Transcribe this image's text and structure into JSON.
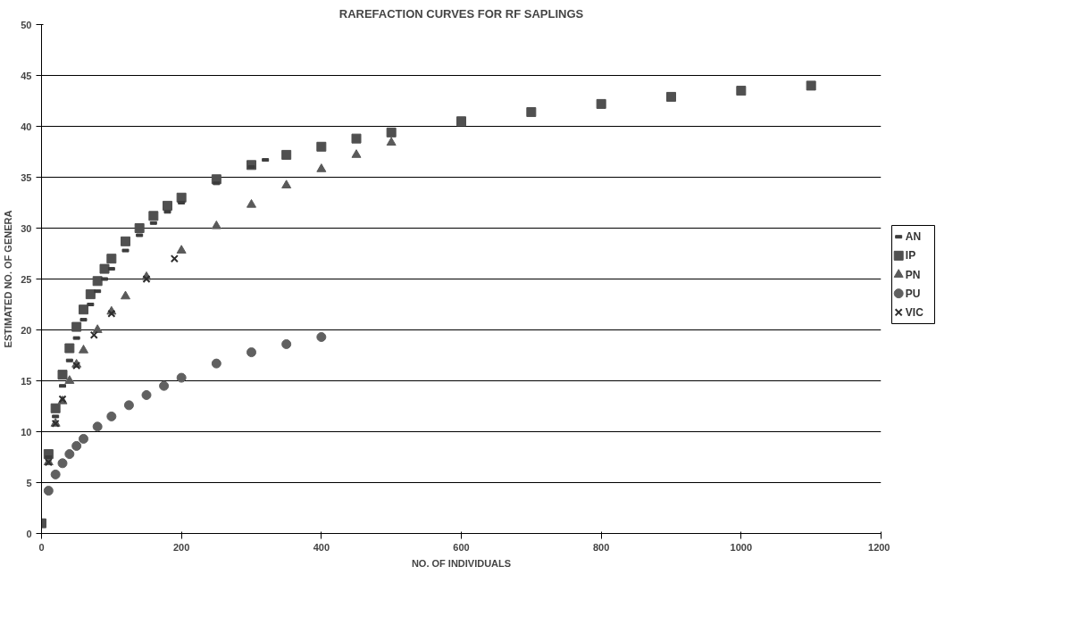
{
  "chart_data": {
    "type": "scatter",
    "title": "RAREFACTION CURVES FOR RF SAPLINGS",
    "xlabel": "NO. OF INDIVIDUALS",
    "ylabel": "ESTIMATED NO. OF GENERA",
    "xlim": [
      0,
      1200
    ],
    "xticks": [
      0,
      200,
      400,
      600,
      800,
      1000,
      1200
    ],
    "ylim": [
      0,
      50
    ],
    "yticks": [
      0,
      5,
      10,
      15,
      20,
      25,
      30,
      35,
      40,
      45,
      50
    ],
    "grid": "y",
    "legend": "right",
    "series": [
      {
        "name": "AN",
        "color": "#3c3c3c",
        "x": [
          10,
          20,
          30,
          40,
          50,
          60,
          70,
          80,
          90,
          100,
          120,
          140,
          160,
          180,
          200,
          250,
          300,
          320
        ],
        "values": [
          7.5,
          11.5,
          14.5,
          17,
          19.2,
          21,
          22.5,
          23.8,
          25,
          26,
          27.8,
          29.3,
          30.5,
          31.6,
          32.5,
          34.4,
          36,
          36.7
        ]
      },
      {
        "name": "IP",
        "color": "#505050",
        "marker": "square",
        "x": [
          0,
          10,
          20,
          30,
          40,
          50,
          60,
          70,
          80,
          90,
          100,
          120,
          140,
          160,
          180,
          200,
          250,
          300,
          350,
          400,
          450,
          500,
          600,
          700,
          800,
          900,
          1000,
          1100
        ],
        "values": [
          1,
          7.8,
          12.3,
          15.6,
          18.2,
          20.3,
          22,
          23.5,
          24.8,
          26,
          27,
          28.7,
          30,
          31.2,
          32.2,
          33,
          34.8,
          36.2,
          37.2,
          38,
          38.8,
          39.4,
          40.5,
          41.4,
          42.2,
          42.9,
          43.5,
          44
        ]
      },
      {
        "name": "PN",
        "color": "#5a5a5a",
        "marker": "triangle",
        "x": [
          10,
          20,
          30,
          40,
          50,
          60,
          80,
          100,
          120,
          150,
          200,
          250,
          300,
          350,
          400,
          450,
          500
        ],
        "values": [
          7,
          10.8,
          13,
          15,
          16.6,
          18,
          20,
          21.8,
          23.3,
          25.2,
          27.8,
          30.2,
          32.3,
          34.2,
          35.8,
          37.2,
          38.4
        ]
      },
      {
        "name": "PU",
        "color": "#606060",
        "marker": "circle",
        "x": [
          10,
          20,
          30,
          40,
          50,
          60,
          80,
          100,
          125,
          150,
          175,
          200,
          250,
          300,
          350,
          400
        ],
        "values": [
          4.2,
          5.8,
          6.9,
          7.8,
          8.6,
          9.3,
          10.5,
          11.5,
          12.6,
          13.6,
          14.5,
          15.3,
          16.7,
          17.8,
          18.6,
          19.3
        ]
      },
      {
        "name": "VIC",
        "color": "#2d2d2d",
        "marker": "cross",
        "x": [
          10,
          20,
          30,
          50,
          75,
          100,
          150,
          190
        ],
        "values": [
          7,
          10.8,
          13.2,
          16.5,
          19.5,
          21.6,
          25,
          27
        ]
      }
    ]
  }
}
